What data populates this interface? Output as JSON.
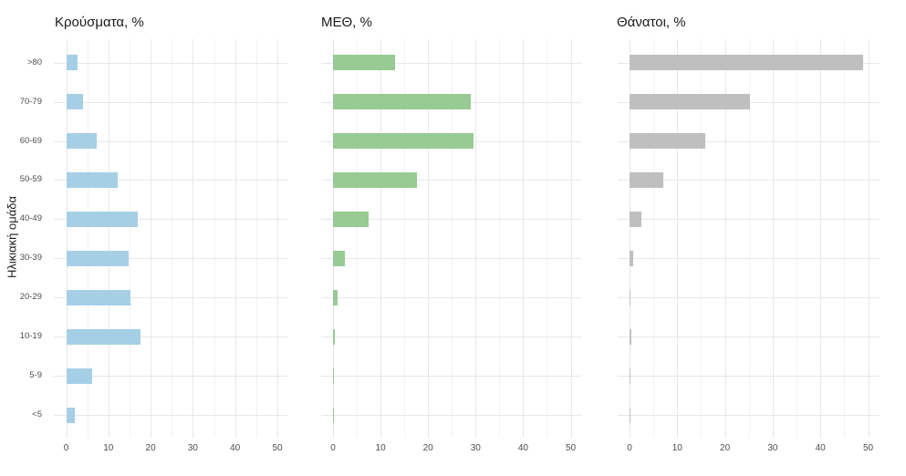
{
  "figure": {
    "y_axis_title": "Ηλικιακή ομάδα"
  },
  "style": {
    "background": "#ffffff",
    "major_grid_color": "#e7e7e7",
    "minor_grid_color": "#f2f2f2",
    "axis_text_color": "#4d4d4d",
    "title_color": "#1a1a1a"
  },
  "chart_data": [
    {
      "type": "bar",
      "orientation": "horizontal",
      "title": "Κρούσματα, %",
      "bar_color": "#a6cfe6",
      "categories": [
        ">80",
        "70-79",
        "60-69",
        "50-59",
        "40-49",
        "30-39",
        "20-29",
        "10-19",
        "5-9",
        "<5"
      ],
      "values": [
        2.7,
        4.0,
        7.2,
        12.3,
        17.0,
        14.8,
        15.2,
        17.7,
        6.1,
        2.1
      ],
      "xlabel": "",
      "ylabel": "Ηλικιακή ομάδα",
      "xlim": [
        0,
        50
      ],
      "xticks": [
        0,
        10,
        20,
        30,
        40,
        50
      ],
      "grid": true,
      "legend": false,
      "y_labels_shown": true
    },
    {
      "type": "bar",
      "orientation": "horizontal",
      "title": "ΜΕΘ, %",
      "bar_color": "#98ca93",
      "categories": [
        ">80",
        "70-79",
        "60-69",
        "50-59",
        "40-49",
        "30-39",
        "20-29",
        "10-19",
        "5-9",
        "<5"
      ],
      "values": [
        13.1,
        29.0,
        29.6,
        17.7,
        7.5,
        2.4,
        1.0,
        0.35,
        0.1,
        0.2
      ],
      "xlabel": "",
      "ylabel": "",
      "xlim": [
        0,
        50
      ],
      "xticks": [
        0,
        10,
        20,
        30,
        40,
        50
      ],
      "grid": true,
      "legend": false,
      "y_labels_shown": false
    },
    {
      "type": "bar",
      "orientation": "horizontal",
      "title": "Θάνατοι, %",
      "bar_color": "#bfbfbf",
      "categories": [
        ">80",
        "70-79",
        "60-69",
        "50-59",
        "40-49",
        "30-39",
        "20-29",
        "10-19",
        "5-9",
        "<5"
      ],
      "values": [
        48.9,
        25.2,
        15.9,
        7.0,
        2.5,
        0.75,
        0.15,
        0.35,
        0.05,
        0.15
      ],
      "xlabel": "",
      "ylabel": "",
      "xlim": [
        0,
        50
      ],
      "xticks": [
        0,
        10,
        20,
        30,
        40,
        50
      ],
      "grid": true,
      "legend": false,
      "y_labels_shown": false
    }
  ]
}
